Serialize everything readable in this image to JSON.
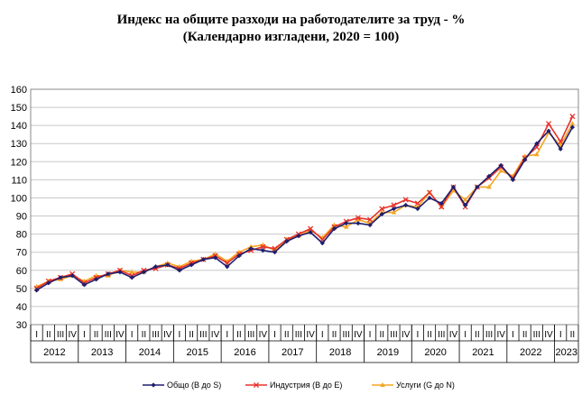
{
  "chart_data": {
    "type": "line",
    "title": "Индекс на общите разходи на работодателите за труд - %",
    "subtitle": "(Календарно изгладени, 2020 = 100)",
    "ylim": [
      30,
      160
    ],
    "yticks": [
      "30",
      "40",
      "50",
      "60",
      "70",
      "80",
      "90",
      "100",
      "110",
      "120",
      "130",
      "140",
      "150",
      "160"
    ],
    "x_quarters": [
      "I",
      "II",
      "III",
      "IV",
      "I",
      "II",
      "III",
      "IV",
      "I",
      "II",
      "III",
      "IV",
      "I",
      "II",
      "III",
      "IV",
      "I",
      "II",
      "III",
      "IV",
      "I",
      "II",
      "III",
      "IV",
      "I",
      "II",
      "III",
      "IV",
      "I",
      "II",
      "III",
      "IV",
      "I",
      "II",
      "III",
      "IV",
      "I",
      "II",
      "III",
      "IV",
      "I",
      "II",
      "III",
      "IV",
      "I",
      "II"
    ],
    "years": [
      "2012",
      "2013",
      "2014",
      "2015",
      "2016",
      "2017",
      "2018",
      "2019",
      "2020",
      "2021",
      "2022",
      "2023"
    ],
    "grid": true,
    "legend_position": "bottom",
    "series": [
      {
        "name": "Общо (B до S)",
        "color": "#1f1f6e",
        "marker": "diamond",
        "values": [
          49,
          53,
          56,
          57,
          52,
          55,
          58,
          59,
          56,
          59,
          62,
          63,
          60,
          63,
          66,
          67,
          62,
          68,
          72,
          71,
          70,
          76,
          79,
          81,
          75,
          83,
          86,
          86,
          85,
          91,
          94,
          96,
          94,
          100,
          97,
          106,
          96,
          106,
          112,
          118,
          110,
          121,
          130,
          137,
          127,
          139
        ]
      },
      {
        "name": "Индустрия (B до E)",
        "color": "#e8302a",
        "marker": "x",
        "values": [
          50,
          54,
          56,
          58,
          53,
          56,
          58,
          60,
          57,
          60,
          61,
          63,
          61,
          64,
          66,
          68,
          64,
          69,
          71,
          73,
          72,
          77,
          80,
          83,
          77,
          84,
          87,
          89,
          88,
          94,
          96,
          99,
          97,
          103,
          95,
          106,
          95,
          106,
          111,
          117,
          111,
          122,
          128,
          141,
          131,
          145
        ]
      },
      {
        "name": "Услуги (G до N)",
        "color": "#f5a623",
        "marker": "triangle",
        "values": [
          51,
          54,
          55,
          57,
          54,
          57,
          57,
          60,
          59,
          59,
          62,
          64,
          62,
          65,
          66,
          69,
          65,
          70,
          73,
          74,
          71,
          77,
          79,
          82,
          78,
          85,
          84,
          88,
          86,
          92,
          92,
          96,
          95,
          103,
          95,
          104,
          99,
          106,
          106,
          115,
          112,
          123,
          124,
          136,
          129,
          141
        ]
      }
    ]
  }
}
